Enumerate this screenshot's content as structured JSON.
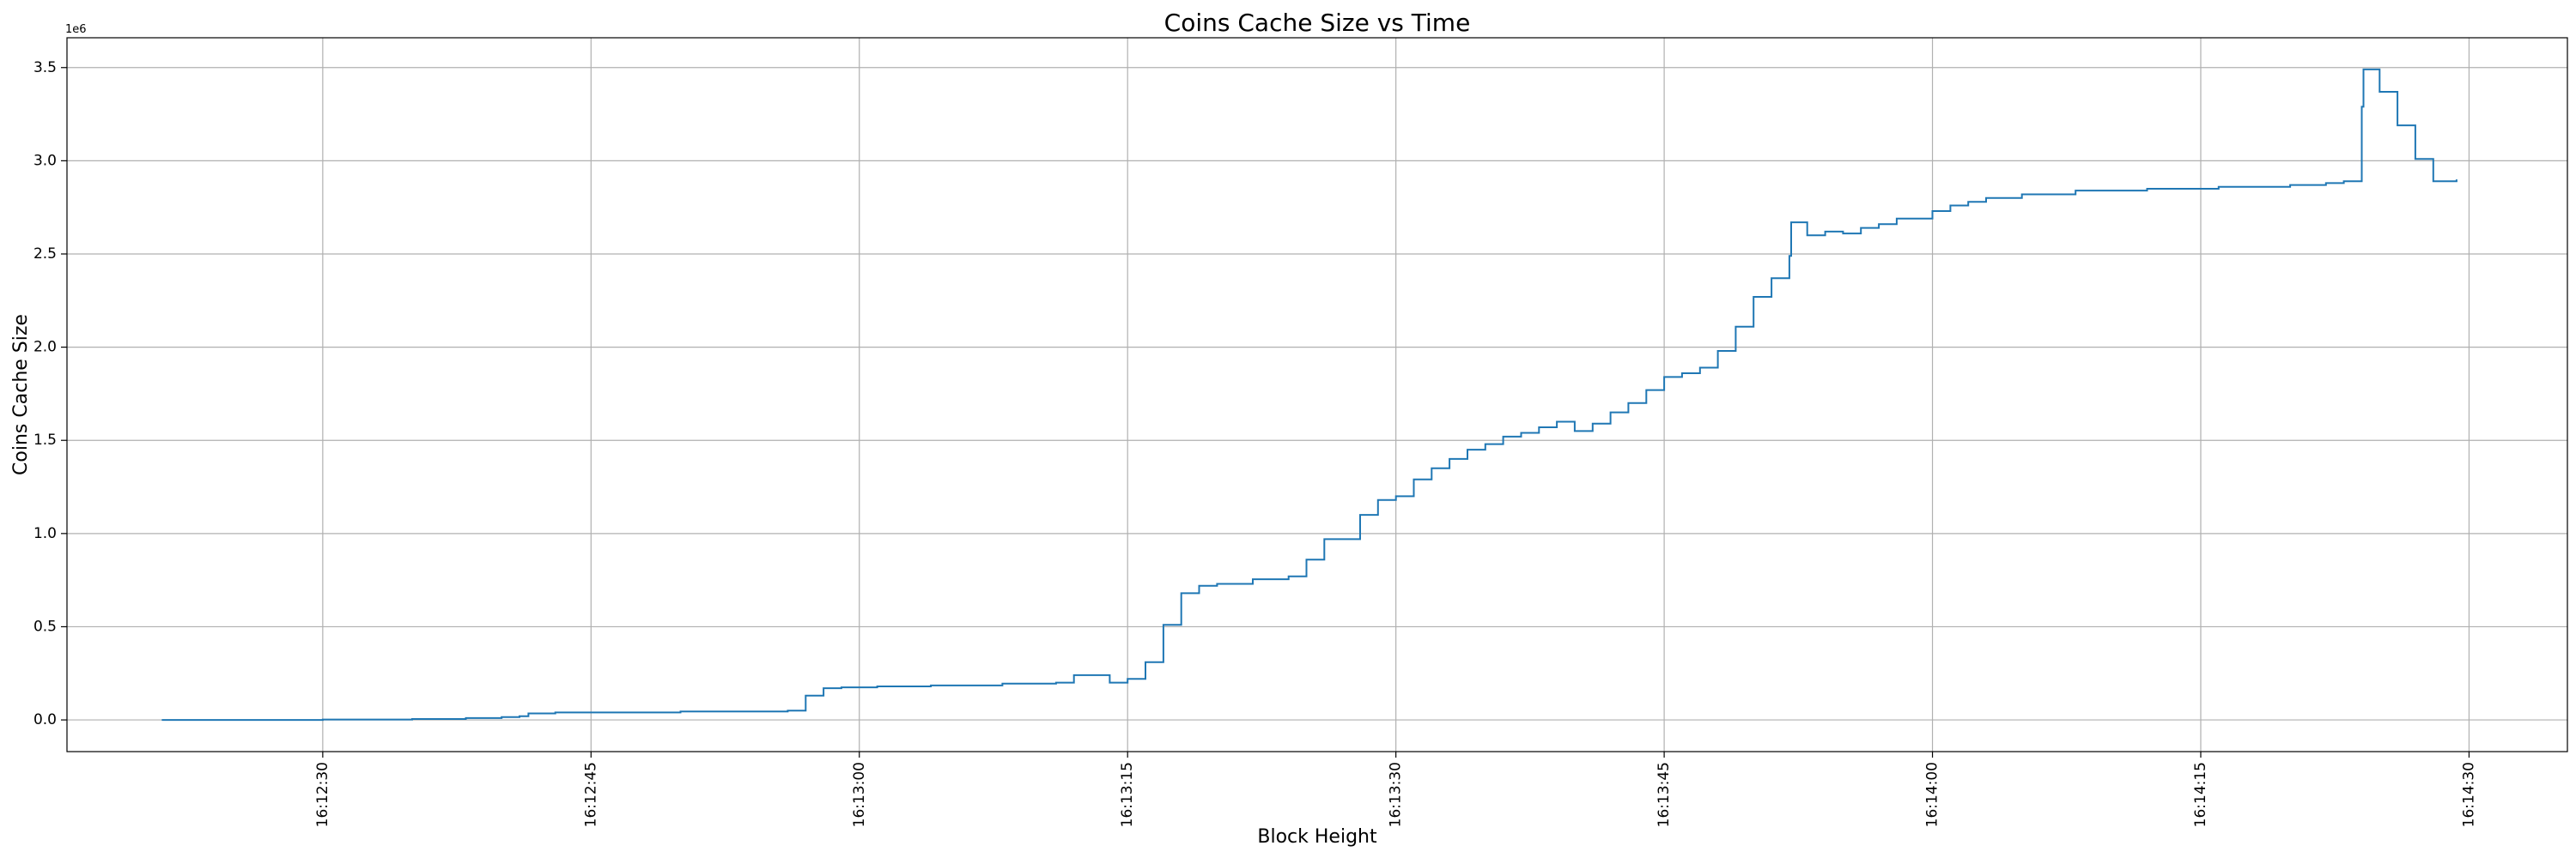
{
  "chart_data": {
    "type": "line",
    "title": "Coins Cache Size vs Time",
    "xlabel": "Block Height",
    "ylabel": "Coins Cache Size",
    "y_offset_label": "1e6",
    "x_tick_labels": [
      "16:12:30",
      "16:12:45",
      "16:13:00",
      "16:13:15",
      "16:13:30",
      "16:13:45",
      "16:14:00",
      "16:14:15",
      "16:14:30"
    ],
    "y_tick_labels": [
      "0.0",
      "0.5",
      "1.0",
      "1.5",
      "2.0",
      "2.5",
      "3.0",
      "3.5"
    ],
    "xlim": [
      "16:12:15.7",
      "16:14:35.5"
    ],
    "ylim": [
      -0.17,
      3.66
    ],
    "grid": true,
    "color": "#1f77b4",
    "series": [
      {
        "x": [
          "16:12:21",
          "16:12:26",
          "16:12:30",
          "16:12:35",
          "16:12:38",
          "16:12:40",
          "16:12:41",
          "16:12:41.5",
          "16:12:43",
          "16:12:50",
          "16:12:56",
          "16:12:57",
          "16:12:58",
          "16:12:59",
          "16:13:01",
          "16:13:04",
          "16:13:08",
          "16:13:11",
          "16:13:12",
          "16:13:14",
          "16:13:15",
          "16:13:16",
          "16:13:17",
          "16:13:18",
          "16:13:19",
          "16:13:20",
          "16:13:22",
          "16:13:24",
          "16:13:25",
          "16:13:26",
          "16:13:28",
          "16:13:29",
          "16:13:30",
          "16:13:31",
          "16:13:32",
          "16:13:33",
          "16:13:34",
          "16:13:35",
          "16:13:36",
          "16:13:37",
          "16:13:38",
          "16:13:39",
          "16:13:40",
          "16:13:41",
          "16:13:42",
          "16:13:43",
          "16:13:44",
          "16:13:45",
          "16:13:46",
          "16:13:47",
          "16:13:48",
          "16:13:49",
          "16:13:50",
          "16:13:51",
          "16:13:52",
          "16:13:52.1",
          "16:13:53",
          "16:13:54",
          "16:13:55",
          "16:13:56",
          "16:13:57",
          "16:13:58",
          "16:14:00",
          "16:14:01",
          "16:14:02",
          "16:14:03",
          "16:14:05",
          "16:14:08",
          "16:14:12",
          "16:14:16",
          "16:14:20",
          "16:14:22",
          "16:14:23",
          "16:14:24",
          "16:14:24.1",
          "16:14:25",
          "16:14:26",
          "16:14:27",
          "16:14:28",
          "16:14:29.3"
        ],
        "y": [
          0.0,
          0.0,
          0.002,
          0.005,
          0.01,
          0.015,
          0.02,
          0.035,
          0.04,
          0.045,
          0.05,
          0.13,
          0.17,
          0.175,
          0.18,
          0.185,
          0.195,
          0.2,
          0.24,
          0.2,
          0.22,
          0.31,
          0.51,
          0.68,
          0.72,
          0.73,
          0.755,
          0.77,
          0.86,
          0.97,
          1.1,
          1.18,
          1.2,
          1.29,
          1.35,
          1.4,
          1.45,
          1.48,
          1.52,
          1.54,
          1.57,
          1.6,
          1.55,
          1.59,
          1.65,
          1.7,
          1.77,
          1.84,
          1.86,
          1.89,
          1.98,
          2.11,
          2.27,
          2.37,
          2.49,
          2.67,
          2.6,
          2.62,
          2.61,
          2.64,
          2.66,
          2.69,
          2.73,
          2.76,
          2.78,
          2.8,
          2.82,
          2.84,
          2.85,
          2.86,
          2.87,
          2.88,
          2.89,
          3.29,
          3.49,
          3.37,
          3.19,
          3.01,
          2.89,
          2.9
        ]
      }
    ]
  }
}
